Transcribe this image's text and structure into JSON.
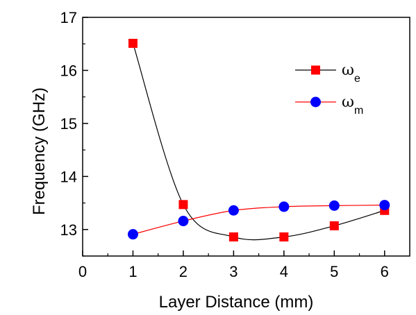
{
  "chart_data": {
    "type": "line",
    "xlabel": "Layer Distance (mm)",
    "ylabel": "Frequency (GHz)",
    "xlim": [
      0,
      6.5
    ],
    "ylim": [
      12.5,
      17
    ],
    "xticks": [
      "0",
      "1",
      "2",
      "3",
      "4",
      "5",
      "6"
    ],
    "yticks": [
      "13",
      "14",
      "15",
      "16",
      "17"
    ],
    "legend_position": "top-right",
    "grid": false,
    "series": [
      {
        "name": "ωe",
        "name_base": "ω",
        "name_sub": "e",
        "marker": "square",
        "marker_color": "#ff0000",
        "line_color": "#000000",
        "x": [
          1,
          2,
          3,
          4,
          5,
          6
        ],
        "values": [
          16.51,
          13.47,
          12.86,
          12.86,
          13.07,
          13.36
        ]
      },
      {
        "name": "ωm",
        "name_base": "ω",
        "name_sub": "m",
        "marker": "circle",
        "marker_color": "#0000ff",
        "line_color": "#ff0000",
        "x": [
          1,
          2,
          3,
          4,
          5,
          6
        ],
        "values": [
          12.91,
          13.16,
          13.36,
          13.43,
          13.45,
          13.46
        ]
      }
    ]
  }
}
